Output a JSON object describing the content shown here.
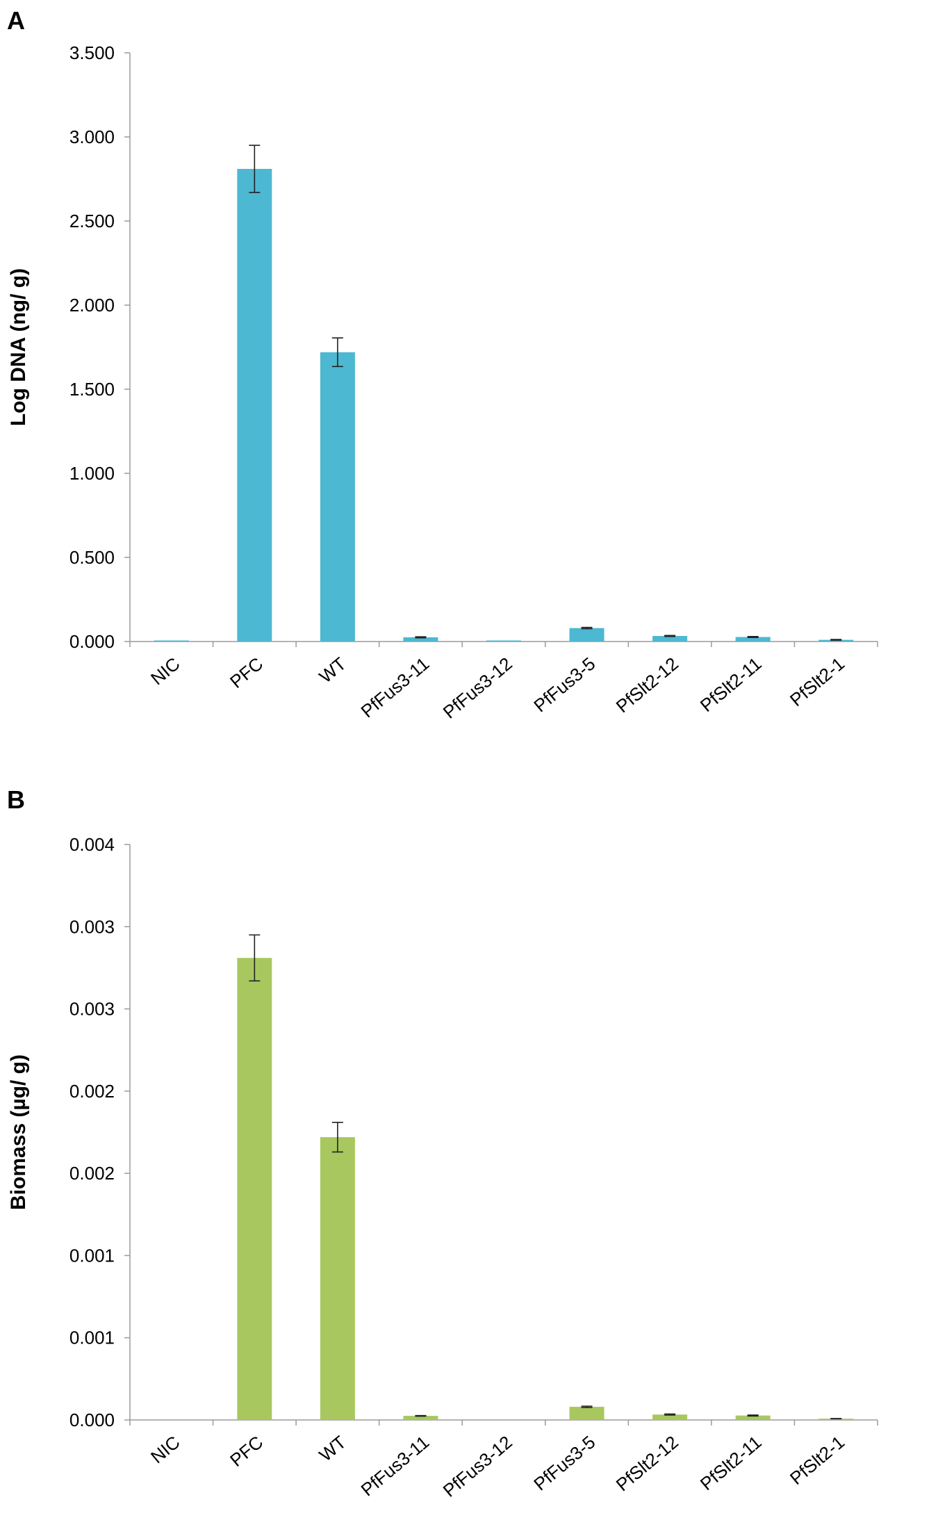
{
  "chart_data": [
    {
      "panel": "A",
      "type": "bar",
      "title": "",
      "xlabel": "",
      "ylabel": "Log DNA (ng/ g)",
      "ylim": [
        0,
        3.5
      ],
      "yticks": [
        0,
        0.5,
        1,
        1.5,
        2,
        2.5,
        3,
        3.5
      ],
      "ytick_labels": [
        "0.000",
        "0.500",
        "1.000",
        "1.500",
        "2.000",
        "2.500",
        "3.000",
        "3.500"
      ],
      "categories": [
        "NIC",
        "PFC",
        "WT",
        "PfFus3-11",
        "PfFus3-12",
        "PfFus3-5",
        "PfSlt2-12",
        "PfSlt2-11",
        "PfSlt2-1"
      ],
      "values": [
        0.002,
        2.81,
        1.72,
        0.025,
        0.003,
        0.08,
        0.033,
        0.027,
        0.01
      ],
      "errors": [
        0.0,
        0.14,
        0.085,
        0.003,
        0.0,
        0.004,
        0.003,
        0.003,
        0.002
      ],
      "color": "#4db8d1",
      "grid": false
    },
    {
      "panel": "B",
      "type": "bar",
      "title": "",
      "xlabel": "",
      "ylabel": "Biomass (µg/ g)",
      "ylim": [
        0,
        0.0035
      ],
      "yticks": [
        0,
        0.0005,
        0.001,
        0.0015,
        0.002,
        0.0025,
        0.003,
        0.0035
      ],
      "ytick_labels": [
        "0.000",
        "0.001",
        "0.001",
        "0.002",
        "0.002",
        "0.003",
        "0.003",
        "0.004"
      ],
      "categories": [
        "NIC",
        "PFC",
        "WT",
        "PfFus3-11",
        "PfFus3-12",
        "PfFus3-5",
        "PfSlt2-12",
        "PfSlt2-11",
        "PfSlt2-1"
      ],
      "values": [
        0.0,
        0.00281,
        0.00172,
        2.5e-05,
        0.0,
        8e-05,
        3.3e-05,
        2.7e-05,
        8e-06
      ],
      "errors": [
        0.0,
        0.00014,
        9e-05,
        2e-06,
        0.0,
        4e-06,
        3e-06,
        3e-06,
        1e-06
      ],
      "color": "#a8c85f",
      "grid": false
    }
  ]
}
